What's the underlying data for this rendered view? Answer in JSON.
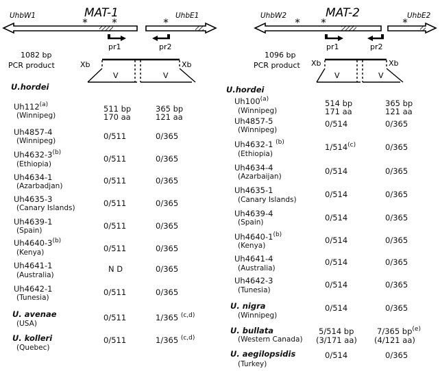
{
  "mat1": {
    "title": "MAT-1",
    "gene_left": "UhbW1",
    "gene_right": "UhbE1",
    "primer1": "pr1",
    "primer2": "pr2",
    "product_line1": "1082 bp",
    "product_line2": "PCR product",
    "xb": "Xb",
    "v": "V",
    "species_header": "U.hordei",
    "rows": [
      {
        "strain": "Uh112",
        "sup": "(a)",
        "loc": "(Winnipeg)",
        "c1": "511 bp",
        "c1b": "170 aa",
        "c2": "365 bp",
        "c2b": "121 aa"
      },
      {
        "strain": "Uh4857-4",
        "sup": "",
        "loc": "(Winnipeg)",
        "c1": "0/511",
        "c2": "0/365"
      },
      {
        "strain": "Uh4632-3",
        "sup": "(b)",
        "loc": "(Ethiopia)",
        "c1": "0/511",
        "c2": "0/365"
      },
      {
        "strain": "Uh4634-1",
        "sup": "",
        "loc": "(Azarbadjan)",
        "c1": "0/511",
        "c2": "0/365"
      },
      {
        "strain": "Uh4635-3",
        "sup": "",
        "loc": "(Canary Islands)",
        "c1": "0/511",
        "c2": "0/365"
      },
      {
        "strain": "Uh4639-1",
        "sup": "",
        "loc": "(Spain)",
        "c1": "0/511",
        "c2": "0/365"
      },
      {
        "strain": "Uh4640-3",
        "sup": "(b)",
        "loc": "(Kenya)",
        "c1": "0/511",
        "c2": "0/365"
      },
      {
        "strain": "Uh4641-1",
        "sup": "",
        "loc": "(Australia)",
        "c1": "N D",
        "c2": "0/365"
      },
      {
        "strain": "Uh4642-1",
        "sup": "",
        "loc": "(Tunesia)",
        "c1": "0/511",
        "c2": "0/365"
      }
    ],
    "others": [
      {
        "species": "U. avenae",
        "loc": "(USA)",
        "c1": "0/511",
        "c2": "1/365",
        "sup": "(c,d)"
      },
      {
        "species": "U. kolleri",
        "loc": "(Quebec)",
        "c1": "0/511",
        "c2": "1/365",
        "sup": "(c,d)"
      }
    ]
  },
  "mat2": {
    "title": "MAT-2",
    "gene_left": "UhbW2",
    "gene_right": "UhbE2",
    "primer1": "pr1",
    "primer2": "pr2",
    "product_line1": "1096 bp",
    "product_line2": "PCR product",
    "xb": "Xb",
    "v": "V",
    "species_header": "U.hordei",
    "rows": [
      {
        "strain": "Uh100",
        "sup": "(a)",
        "loc": "(Winnipeg)",
        "c1": "514 bp",
        "c1b": "171 aa",
        "c2": "365 bp",
        "c2b": "121 aa"
      },
      {
        "strain": "Uh4857-5",
        "sup": "",
        "loc": "(Winnipeg)",
        "c1": "0/514",
        "c2": "0/365"
      },
      {
        "strain": "Uh4632-1",
        "sup": "(b)",
        "loc": "(Ethiopia)",
        "c1": "1/514",
        "c1sup": "(c)",
        "c2": "0/365"
      },
      {
        "strain": "Uh4634-4",
        "sup": "",
        "loc": "(Azarbaijan)",
        "c1": "0/514",
        "c2": "0/365"
      },
      {
        "strain": "Uh4635-1",
        "sup": "",
        "loc": "(Canary Islands)",
        "c1": "0/514",
        "c2": "0/365"
      },
      {
        "strain": "Uh4639-4",
        "sup": "",
        "loc": "(Spain)",
        "c1": "0/514",
        "c2": "0/365"
      },
      {
        "strain": "Uh4640-1",
        "sup": "(b)",
        "loc": "(Kenya)",
        "c1": "0/514",
        "c2": "0/365"
      },
      {
        "strain": "Uh4641-4",
        "sup": "",
        "loc": "(Australia)",
        "c1": "0/514",
        "c2": "0/365"
      },
      {
        "strain": "Uh4642-3",
        "sup": "",
        "loc": "(Tunesia)",
        "c1": "0/514",
        "c2": "0/365"
      }
    ],
    "others": [
      {
        "species": "U. nigra",
        "loc": "(Winnipeg)",
        "c1": "0/514",
        "c2": "0/365"
      },
      {
        "species": "U. bullata",
        "loc": "(Western Canada)",
        "c1": "5/514 bp",
        "c1b": "(3/171 aa)",
        "c2": "7/365 bp",
        "c2b": "(4/121 aa)",
        "sup": "(e)"
      },
      {
        "species": "U. aegilopsidis",
        "loc": "(Turkey)",
        "c1": "0/514",
        "c2": "0/365"
      }
    ]
  }
}
